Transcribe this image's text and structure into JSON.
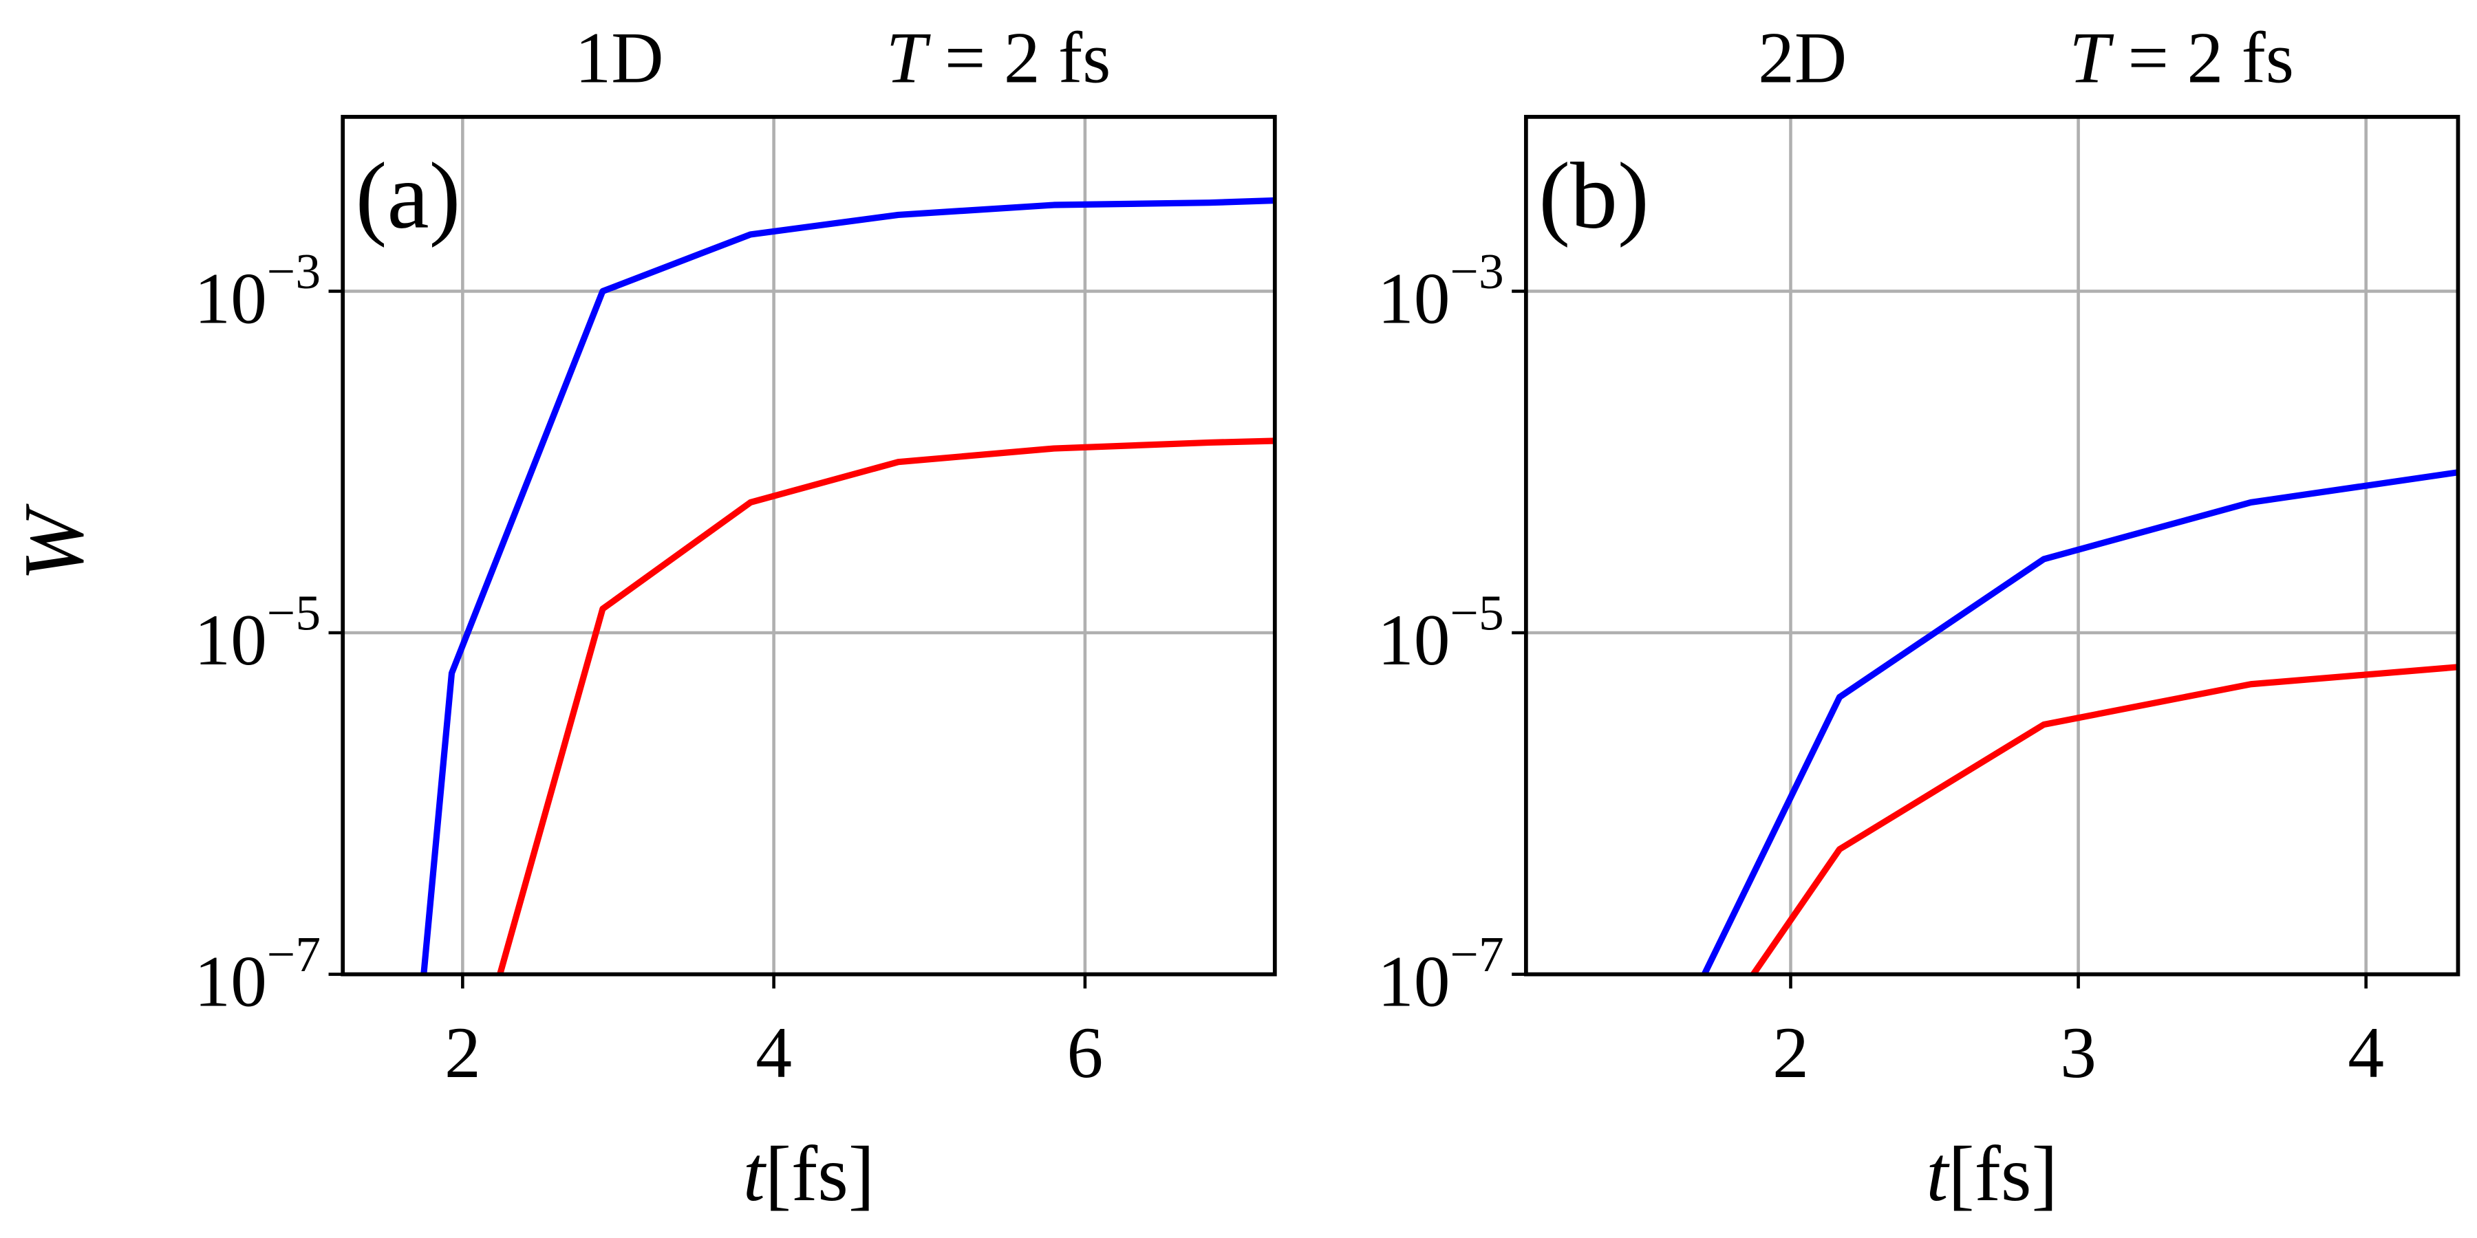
{
  "chart_data": [
    {
      "type": "line",
      "panel_label": "(a)",
      "title": "1D",
      "subtitle": "T = 2 fs",
      "xlabel": "t[fs]",
      "ylabel": "W",
      "log_y": true,
      "grid": true,
      "xlim": [
        1.23,
        7.22
      ],
      "xticks": [
        2,
        4,
        6
      ],
      "ylim": [
        1e-07,
        0.0105
      ],
      "yticks": [
        {
          "value": 1e-07,
          "label": "10−7"
        },
        {
          "value": 1e-05,
          "label": "10−5"
        },
        {
          "value": 0.001,
          "label": "10−3"
        }
      ],
      "series": [
        {
          "color": "#0000ff",
          "x": [
            1.75,
            1.93,
            2.9,
            3.85,
            4.8,
            5.8,
            6.8,
            7.22
          ],
          "values": [
            1e-07,
            5.8e-06,
            0.001,
            0.00215,
            0.0028,
            0.0032,
            0.0033,
            0.0034
          ]
        },
        {
          "color": "#ff0000",
          "x": [
            2.24,
            2.9,
            3.85,
            4.8,
            5.8,
            6.8,
            7.22
          ],
          "values": [
            1e-07,
            1.38e-05,
            5.8e-05,
            0.0001,
            0.00012,
            0.00013,
            0.000133
          ]
        }
      ]
    },
    {
      "type": "line",
      "panel_label": "(b)",
      "title": "2D",
      "subtitle": "T = 2 fs",
      "xlabel": "t[fs]",
      "log_y": true,
      "grid": true,
      "xlim": [
        1.08,
        4.32
      ],
      "xticks": [
        2,
        3,
        4
      ],
      "ylim": [
        1e-07,
        0.0105
      ],
      "yticks": [
        {
          "value": 1e-07,
          "label": "10−7"
        },
        {
          "value": 1e-05,
          "label": "10−5"
        },
        {
          "value": 0.001,
          "label": "10−3"
        }
      ],
      "series": [
        {
          "color": "#0000ff",
          "x": [
            1.7,
            2.17,
            2.88,
            3.6,
            4.32
          ],
          "values": [
            1e-07,
            4.2e-06,
            2.7e-05,
            5.8e-05,
            8.7e-05
          ]
        },
        {
          "color": "#ff0000",
          "x": [
            1.87,
            2.17,
            2.88,
            3.6,
            4.32
          ],
          "values": [
            1e-07,
            5.4e-07,
            2.9e-06,
            5e-06,
            6.3e-06
          ]
        }
      ]
    }
  ]
}
